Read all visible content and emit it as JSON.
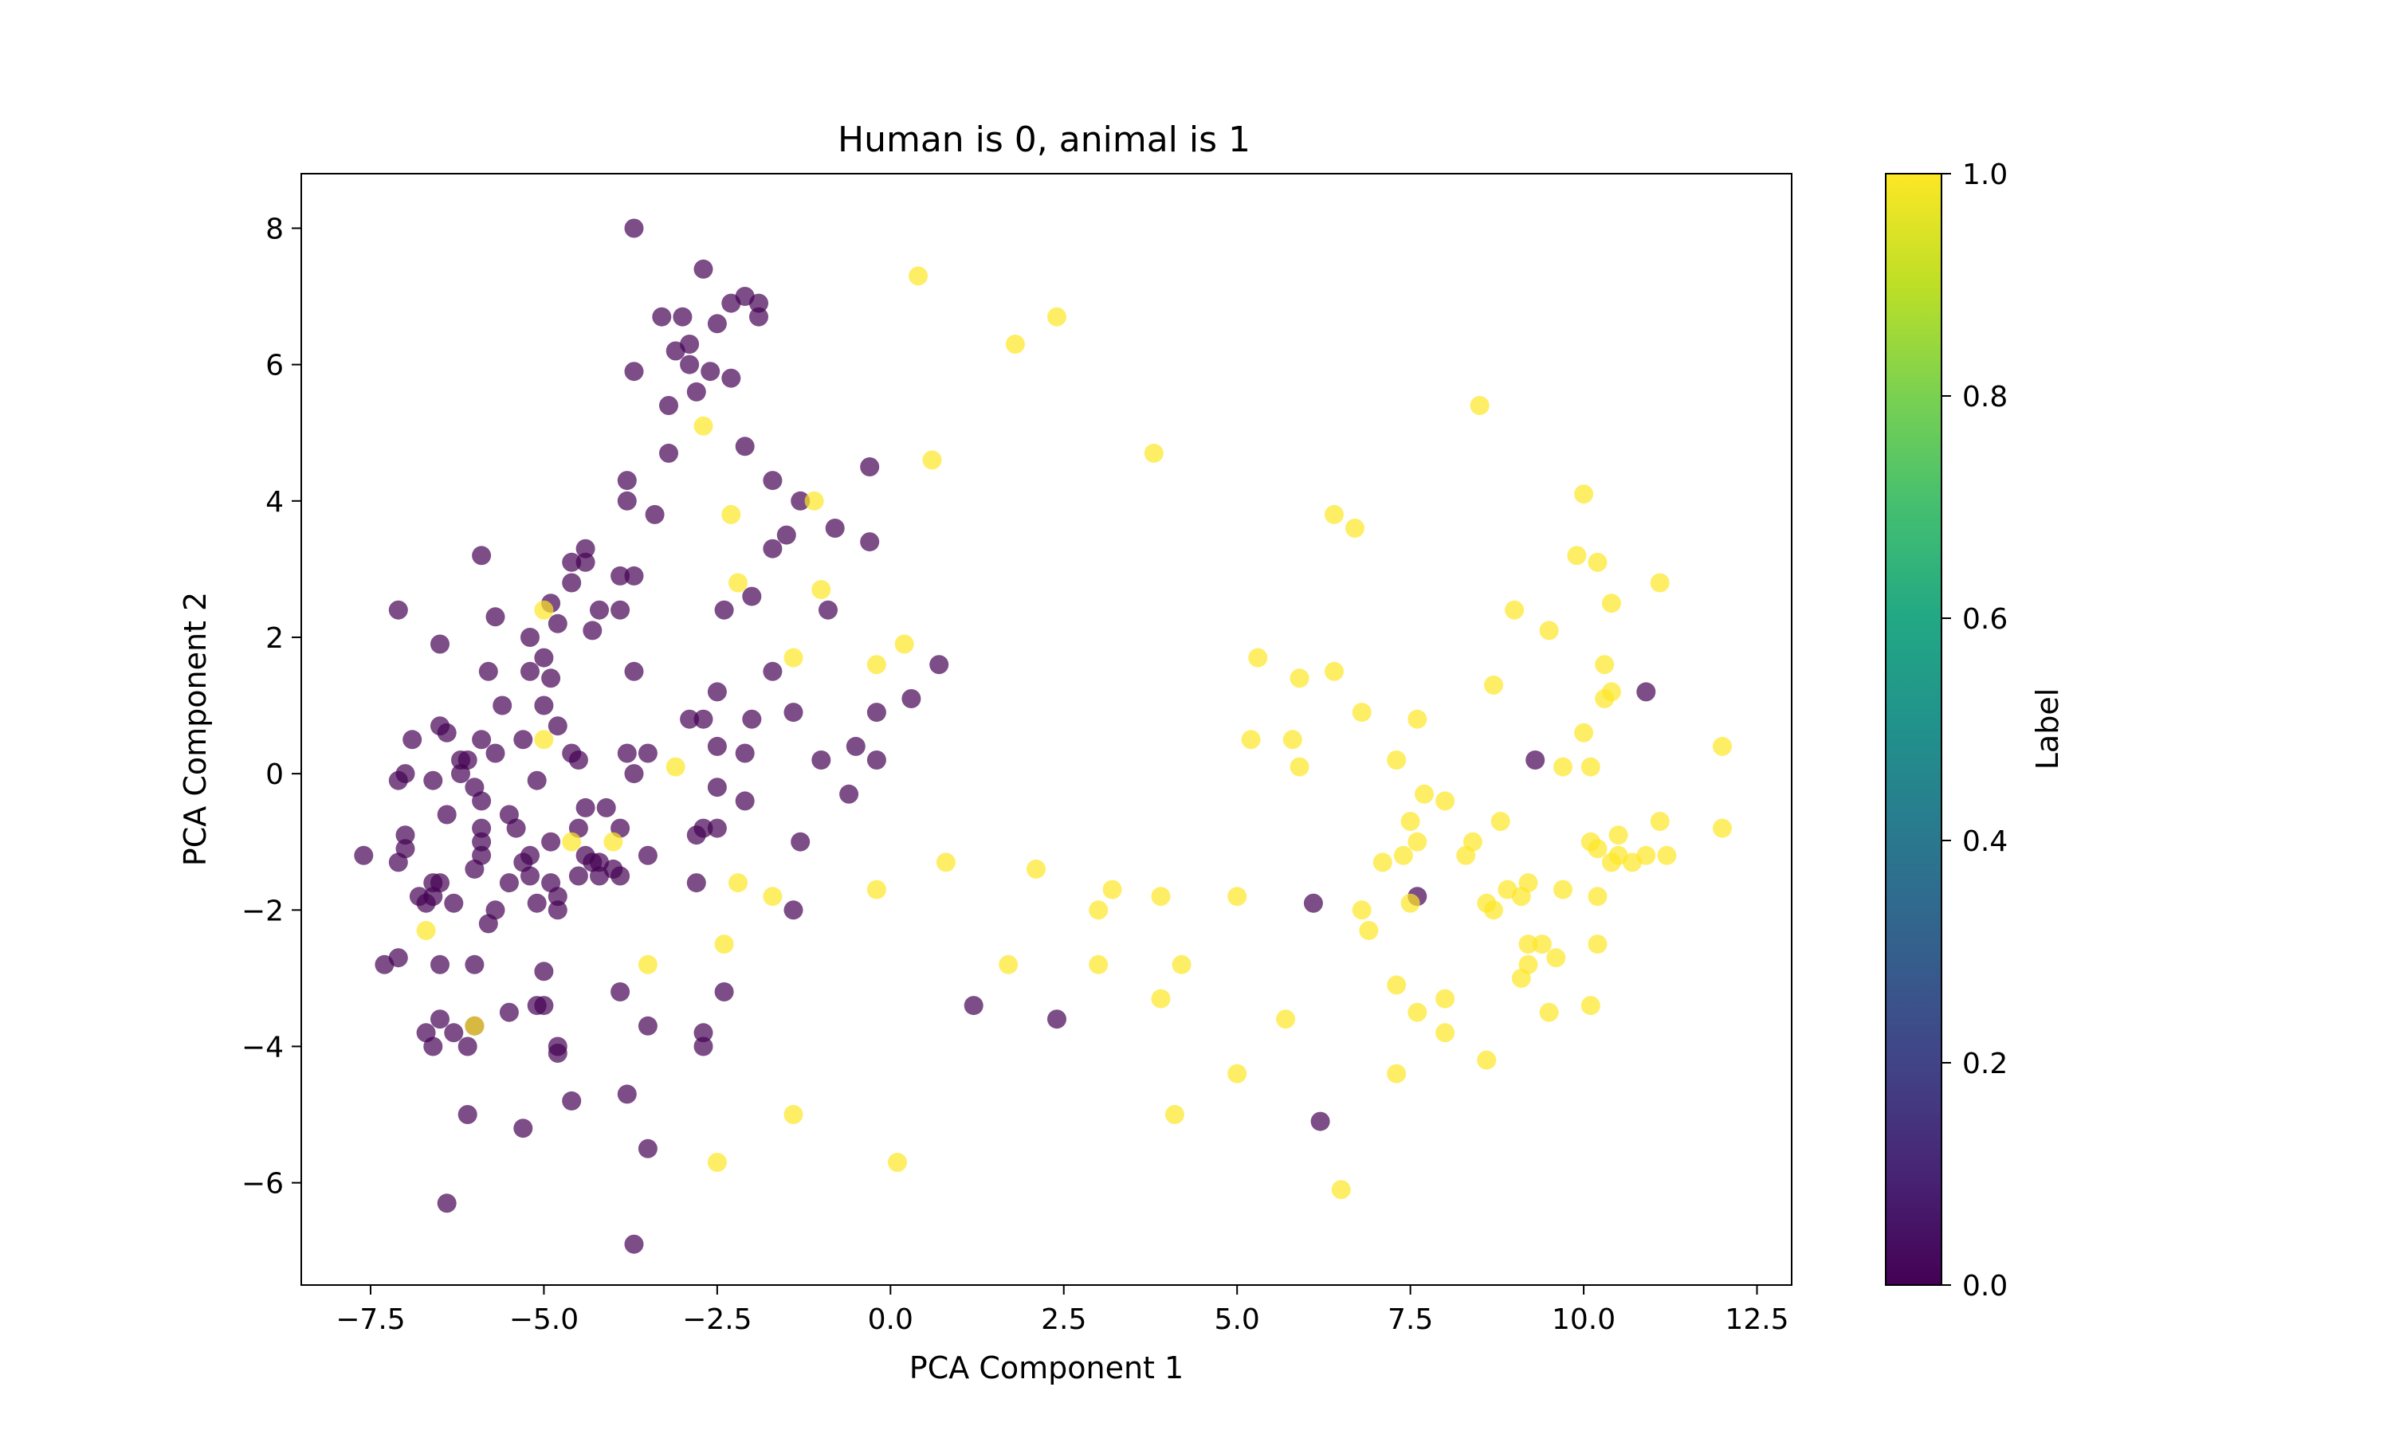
{
  "chart_data": {
    "type": "scatter",
    "title": "Human is 0, animal is 1",
    "xlabel": "PCA Component 1",
    "ylabel": "PCA Component 2",
    "xlim": [
      -8.5,
      13.0
    ],
    "ylim": [
      -7.5,
      8.8
    ],
    "xticks": [
      -7.5,
      -5.0,
      -2.5,
      0.0,
      2.5,
      5.0,
      7.5,
      10.0,
      12.5
    ],
    "xtick_labels": [
      "−7.5",
      "−5.0",
      "−2.5",
      "0.0",
      "2.5",
      "5.0",
      "7.5",
      "10.0",
      "12.5"
    ],
    "yticks": [
      -6,
      -4,
      -2,
      0,
      2,
      4,
      6,
      8
    ],
    "ytick_labels": [
      "−6",
      "−4",
      "−2",
      "0",
      "2",
      "4",
      "6",
      "8"
    ],
    "grid": false,
    "colorbar": {
      "label": "Label",
      "colormap": "viridis",
      "range": [
        0.0,
        1.0
      ],
      "ticks": [
        0.0,
        0.2,
        0.4,
        0.6,
        0.8,
        1.0
      ],
      "tick_labels": [
        "0.0",
        "0.2",
        "0.4",
        "0.6",
        "0.8",
        "1.0"
      ]
    },
    "colors": {
      "label_0": "#440154",
      "label_1": "#fde725",
      "axis": "#000000",
      "background": "#ffffff"
    },
    "series": [
      {
        "label_value": 0,
        "points": [
          [
            -3.7,
            8.0
          ],
          [
            -2.7,
            7.4
          ],
          [
            -2.3,
            6.9
          ],
          [
            -2.1,
            7.0
          ],
          [
            -1.9,
            6.9
          ],
          [
            -3.3,
            6.7
          ],
          [
            -3.0,
            6.7
          ],
          [
            -2.5,
            6.6
          ],
          [
            -1.9,
            6.7
          ],
          [
            -2.9,
            6.3
          ],
          [
            -3.1,
            6.2
          ],
          [
            -3.7,
            5.9
          ],
          [
            -2.9,
            6.0
          ],
          [
            -2.6,
            5.9
          ],
          [
            -2.3,
            5.8
          ],
          [
            -2.8,
            5.6
          ],
          [
            -3.2,
            5.4
          ],
          [
            -2.1,
            4.8
          ],
          [
            -3.2,
            4.7
          ],
          [
            -0.3,
            4.5
          ],
          [
            -3.8,
            4.3
          ],
          [
            -1.7,
            4.3
          ],
          [
            -3.8,
            4.0
          ],
          [
            -1.3,
            4.0
          ],
          [
            -3.4,
            3.8
          ],
          [
            -0.8,
            3.6
          ],
          [
            -1.5,
            3.5
          ],
          [
            -0.3,
            3.4
          ],
          [
            -1.7,
            3.3
          ],
          [
            -4.4,
            3.3
          ],
          [
            -5.9,
            3.2
          ],
          [
            -4.6,
            3.1
          ],
          [
            -4.4,
            3.1
          ],
          [
            -3.9,
            2.9
          ],
          [
            -3.7,
            2.9
          ],
          [
            -4.6,
            2.8
          ],
          [
            -2.0,
            2.6
          ],
          [
            -4.9,
            2.5
          ],
          [
            -7.1,
            2.4
          ],
          [
            -5.7,
            2.3
          ],
          [
            -4.2,
            2.4
          ],
          [
            -3.9,
            2.4
          ],
          [
            -2.4,
            2.4
          ],
          [
            -0.9,
            2.4
          ],
          [
            -4.8,
            2.2
          ],
          [
            -4.3,
            2.1
          ],
          [
            -6.5,
            1.9
          ],
          [
            -5.2,
            2.0
          ],
          [
            -5.0,
            1.7
          ],
          [
            -5.8,
            1.5
          ],
          [
            -5.2,
            1.5
          ],
          [
            -4.9,
            1.4
          ],
          [
            -3.7,
            1.5
          ],
          [
            -1.7,
            1.5
          ],
          [
            0.7,
            1.6
          ],
          [
            -2.5,
            1.2
          ],
          [
            0.3,
            1.1
          ],
          [
            -5.6,
            1.0
          ],
          [
            -5.0,
            1.0
          ],
          [
            -2.9,
            0.8
          ],
          [
            -2.7,
            0.8
          ],
          [
            -2.0,
            0.8
          ],
          [
            -1.4,
            0.9
          ],
          [
            -0.2,
            0.9
          ],
          [
            -6.5,
            0.7
          ],
          [
            -4.8,
            0.7
          ],
          [
            -6.9,
            0.5
          ],
          [
            -6.4,
            0.6
          ],
          [
            -5.9,
            0.5
          ],
          [
            -5.3,
            0.5
          ],
          [
            -2.5,
            0.4
          ],
          [
            -0.5,
            0.4
          ],
          [
            -3.8,
            0.3
          ],
          [
            -3.5,
            0.3
          ],
          [
            -4.6,
            0.3
          ],
          [
            -5.7,
            0.3
          ],
          [
            -6.2,
            0.2
          ],
          [
            -6.1,
            0.2
          ],
          [
            -4.5,
            0.2
          ],
          [
            -2.1,
            0.3
          ],
          [
            -1.0,
            0.2
          ],
          [
            -0.2,
            0.2
          ],
          [
            -7.0,
            0.0
          ],
          [
            -6.6,
            -0.1
          ],
          [
            -6.2,
            0.0
          ],
          [
            -5.1,
            -0.1
          ],
          [
            -3.7,
            0.0
          ],
          [
            -7.1,
            -0.1
          ],
          [
            -6.0,
            -0.2
          ],
          [
            -2.5,
            -0.2
          ],
          [
            -0.6,
            -0.3
          ],
          [
            -5.9,
            -0.4
          ],
          [
            -2.1,
            -0.4
          ],
          [
            -4.4,
            -0.5
          ],
          [
            -5.5,
            -0.6
          ],
          [
            -6.4,
            -0.6
          ],
          [
            -4.1,
            -0.5
          ],
          [
            -5.9,
            -0.8
          ],
          [
            -3.9,
            -0.8
          ],
          [
            -4.5,
            -0.8
          ],
          [
            -2.5,
            -0.8
          ],
          [
            -2.7,
            -0.8
          ],
          [
            -5.4,
            -0.8
          ],
          [
            -7.0,
            -0.9
          ],
          [
            -2.8,
            -0.9
          ],
          [
            -5.9,
            -1.0
          ],
          [
            -4.9,
            -1.0
          ],
          [
            -1.3,
            -1.0
          ],
          [
            -7.0,
            -1.1
          ],
          [
            -5.2,
            -1.2
          ],
          [
            -4.4,
            -1.2
          ],
          [
            -4.2,
            -1.3
          ],
          [
            -3.5,
            -1.2
          ],
          [
            -5.9,
            -1.2
          ],
          [
            -7.6,
            -1.2
          ],
          [
            -7.1,
            -1.3
          ],
          [
            -5.3,
            -1.3
          ],
          [
            -4.3,
            -1.3
          ],
          [
            -4.0,
            -1.4
          ],
          [
            -6.0,
            -1.4
          ],
          [
            -5.2,
            -1.5
          ],
          [
            -4.9,
            -1.6
          ],
          [
            -4.5,
            -1.5
          ],
          [
            -4.2,
            -1.5
          ],
          [
            -3.9,
            -1.5
          ],
          [
            -6.6,
            -1.6
          ],
          [
            -6.5,
            -1.6
          ],
          [
            -2.8,
            -1.6
          ],
          [
            -5.5,
            -1.6
          ],
          [
            -4.8,
            -1.8
          ],
          [
            -6.8,
            -1.8
          ],
          [
            -6.7,
            -1.9
          ],
          [
            -6.3,
            -1.9
          ],
          [
            -5.1,
            -1.9
          ],
          [
            -5.7,
            -2.0
          ],
          [
            -4.8,
            -2.0
          ],
          [
            -1.4,
            -2.0
          ],
          [
            -6.6,
            -1.8
          ],
          [
            -5.8,
            -2.2
          ],
          [
            -6.5,
            -2.8
          ],
          [
            -7.3,
            -2.8
          ],
          [
            -7.1,
            -2.7
          ],
          [
            -6.0,
            -2.8
          ],
          [
            -5.0,
            -2.9
          ],
          [
            -3.9,
            -3.2
          ],
          [
            -2.4,
            -3.2
          ],
          [
            -6.5,
            -3.6
          ],
          [
            -5.5,
            -3.5
          ],
          [
            -5.0,
            -3.4
          ],
          [
            -5.1,
            -3.4
          ],
          [
            -3.5,
            -3.7
          ],
          [
            -6.7,
            -3.8
          ],
          [
            -6.3,
            -3.8
          ],
          [
            -6.0,
            -3.7
          ],
          [
            -2.7,
            -3.8
          ],
          [
            -6.6,
            -4.0
          ],
          [
            -6.1,
            -4.0
          ],
          [
            -4.8,
            -4.0
          ],
          [
            -4.8,
            -4.1
          ],
          [
            -2.7,
            -4.0
          ],
          [
            -4.6,
            -4.8
          ],
          [
            -3.8,
            -4.7
          ],
          [
            -6.1,
            -5.0
          ],
          [
            -5.3,
            -5.2
          ],
          [
            -3.5,
            -5.5
          ],
          [
            -6.4,
            -6.3
          ],
          [
            -3.7,
            -6.9
          ],
          [
            1.2,
            -3.4
          ],
          [
            2.4,
            -3.6
          ],
          [
            6.1,
            -1.9
          ],
          [
            7.6,
            -1.8
          ],
          [
            6.2,
            -5.1
          ],
          [
            9.3,
            0.2
          ],
          [
            10.9,
            1.2
          ]
        ]
      },
      {
        "label_value": 1,
        "points": [
          [
            0.4,
            7.3
          ],
          [
            2.4,
            6.7
          ],
          [
            1.8,
            6.3
          ],
          [
            8.5,
            5.4
          ],
          [
            -2.7,
            5.1
          ],
          [
            3.8,
            4.7
          ],
          [
            0.6,
            4.6
          ],
          [
            10.0,
            4.1
          ],
          [
            -1.1,
            4.0
          ],
          [
            -2.3,
            3.8
          ],
          [
            6.4,
            3.8
          ],
          [
            6.7,
            3.6
          ],
          [
            9.9,
            3.2
          ],
          [
            10.2,
            3.1
          ],
          [
            -2.2,
            2.8
          ],
          [
            11.1,
            2.8
          ],
          [
            -1.0,
            2.7
          ],
          [
            10.4,
            2.5
          ],
          [
            -5.0,
            2.4
          ],
          [
            9.0,
            2.4
          ],
          [
            9.5,
            2.1
          ],
          [
            0.2,
            1.9
          ],
          [
            5.3,
            1.7
          ],
          [
            -1.4,
            1.7
          ],
          [
            -0.2,
            1.6
          ],
          [
            10.3,
            1.6
          ],
          [
            6.4,
            1.5
          ],
          [
            5.9,
            1.4
          ],
          [
            8.7,
            1.3
          ],
          [
            10.4,
            1.2
          ],
          [
            10.3,
            1.1
          ],
          [
            6.8,
            0.9
          ],
          [
            7.6,
            0.8
          ],
          [
            10.0,
            0.6
          ],
          [
            5.2,
            0.5
          ],
          [
            5.8,
            0.5
          ],
          [
            -5.0,
            0.5
          ],
          [
            12.0,
            0.4
          ],
          [
            -3.1,
            0.1
          ],
          [
            7.3,
            0.2
          ],
          [
            5.9,
            0.1
          ],
          [
            9.7,
            0.1
          ],
          [
            10.1,
            0.1
          ],
          [
            7.7,
            -0.3
          ],
          [
            8.0,
            -0.4
          ],
          [
            7.5,
            -0.7
          ],
          [
            8.8,
            -0.7
          ],
          [
            11.1,
            -0.7
          ],
          [
            12.0,
            -0.8
          ],
          [
            10.5,
            -0.9
          ],
          [
            8.4,
            -1.0
          ],
          [
            7.6,
            -1.0
          ],
          [
            10.1,
            -1.0
          ],
          [
            -4.6,
            -1.0
          ],
          [
            -4.0,
            -1.0
          ],
          [
            10.2,
            -1.1
          ],
          [
            10.5,
            -1.2
          ],
          [
            10.9,
            -1.2
          ],
          [
            11.2,
            -1.2
          ],
          [
            7.1,
            -1.3
          ],
          [
            7.4,
            -1.2
          ],
          [
            8.3,
            -1.2
          ],
          [
            10.4,
            -1.3
          ],
          [
            10.7,
            -1.3
          ],
          [
            0.8,
            -1.3
          ],
          [
            2.1,
            -1.4
          ],
          [
            -2.2,
            -1.6
          ],
          [
            -0.2,
            -1.7
          ],
          [
            9.2,
            -1.6
          ],
          [
            9.7,
            -1.7
          ],
          [
            8.9,
            -1.7
          ],
          [
            3.2,
            -1.7
          ],
          [
            3.9,
            -1.8
          ],
          [
            5.0,
            -1.8
          ],
          [
            9.1,
            -1.8
          ],
          [
            10.2,
            -1.8
          ],
          [
            -1.7,
            -1.8
          ],
          [
            7.5,
            -1.9
          ],
          [
            8.6,
            -1.9
          ],
          [
            8.7,
            -2.0
          ],
          [
            3.0,
            -2.0
          ],
          [
            6.8,
            -2.0
          ],
          [
            6.9,
            -2.3
          ],
          [
            -6.7,
            -2.3
          ],
          [
            -2.4,
            -2.5
          ],
          [
            9.2,
            -2.5
          ],
          [
            9.4,
            -2.5
          ],
          [
            10.2,
            -2.5
          ],
          [
            9.2,
            -2.8
          ],
          [
            9.6,
            -2.7
          ],
          [
            4.2,
            -2.8
          ],
          [
            1.7,
            -2.8
          ],
          [
            3.0,
            -2.8
          ],
          [
            -3.5,
            -2.8
          ],
          [
            9.1,
            -3.0
          ],
          [
            7.3,
            -3.1
          ],
          [
            3.9,
            -3.3
          ],
          [
            8.0,
            -3.3
          ],
          [
            10.1,
            -3.4
          ],
          [
            7.6,
            -3.5
          ],
          [
            9.5,
            -3.5
          ],
          [
            5.7,
            -3.6
          ],
          [
            -6.0,
            -3.7
          ],
          [
            8.0,
            -3.8
          ],
          [
            8.6,
            -4.2
          ],
          [
            5.0,
            -4.4
          ],
          [
            7.3,
            -4.4
          ],
          [
            4.1,
            -5.0
          ],
          [
            -1.4,
            -5.0
          ],
          [
            -2.5,
            -5.7
          ],
          [
            0.1,
            -5.7
          ],
          [
            6.5,
            -6.1
          ]
        ]
      }
    ]
  }
}
